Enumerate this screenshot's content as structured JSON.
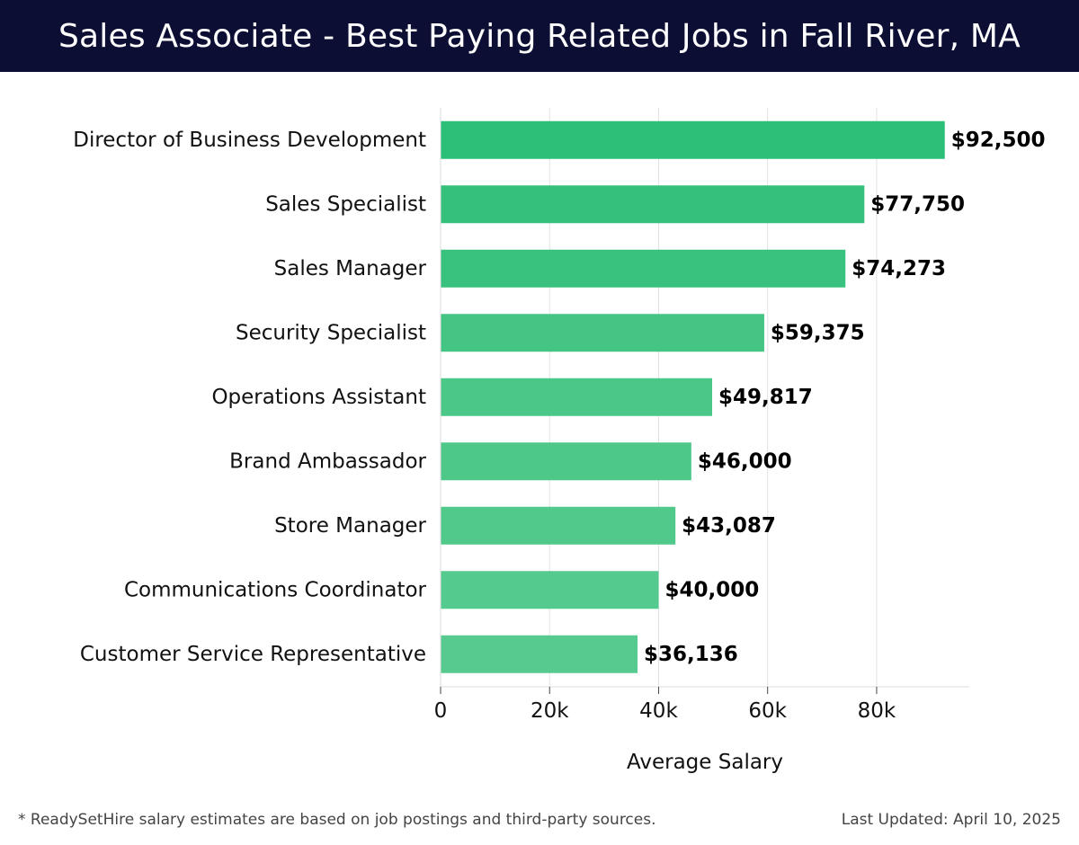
{
  "header": {
    "title": "Sales Associate - Best Paying Related Jobs in Fall River, MA"
  },
  "chart_data": {
    "type": "bar",
    "orientation": "horizontal",
    "title": "Sales Associate - Best Paying Related Jobs in Fall River, MA",
    "xlabel": "Average Salary",
    "ylabel": "",
    "xlim": [
      0,
      97000
    ],
    "xticks": [
      0,
      20000,
      40000,
      60000,
      80000
    ],
    "xtick_labels": [
      "0",
      "20k",
      "40k",
      "60k",
      "80k"
    ],
    "grid": true,
    "categories": [
      "Director of Business Development",
      "Sales Specialist",
      "Sales Manager",
      "Security Specialist",
      "Operations Assistant",
      "Brand Ambassador",
      "Store Manager",
      "Communications Coordinator",
      "Customer Service Representative"
    ],
    "values": [
      92500,
      77750,
      74273,
      59375,
      49817,
      46000,
      43087,
      40000,
      36136
    ],
    "value_labels": [
      "$92,500",
      "$77,750",
      "$74,273",
      "$59,375",
      "$49,817",
      "$46,000",
      "$43,087",
      "$40,000",
      "$36,136"
    ],
    "bar_colors": [
      "#2bbf77",
      "#35c17c",
      "#39c27e",
      "#45c584",
      "#4bc787",
      "#4ec889",
      "#51c98b",
      "#55ca8e",
      "#57cb8f"
    ]
  },
  "footer": {
    "note": "* ReadySetHire salary estimates are based on job postings and third-party sources.",
    "updated": "Last Updated: April 10, 2025"
  }
}
